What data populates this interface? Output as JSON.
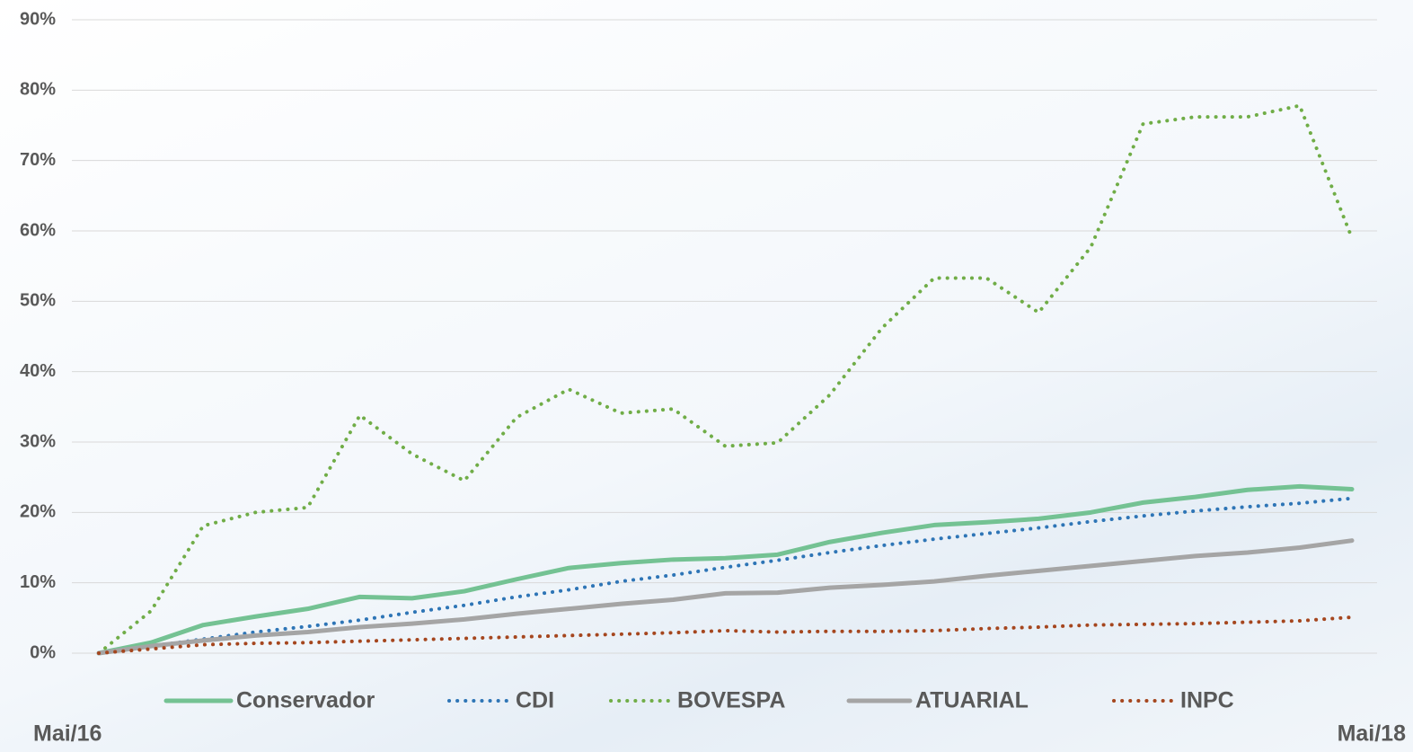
{
  "chart_data": {
    "type": "line",
    "categories": [
      "Mai/16",
      null,
      null,
      null,
      null,
      null,
      null,
      null,
      null,
      null,
      null,
      null,
      null,
      null,
      null,
      null,
      null,
      null,
      null,
      null,
      null,
      null,
      null,
      null,
      "Mai/18"
    ],
    "ylim": [
      0,
      90
    ],
    "yticks": [
      {
        "value": 0,
        "label": "0%"
      },
      {
        "value": 10,
        "label": "10%"
      },
      {
        "value": 20,
        "label": "20%"
      },
      {
        "value": 30,
        "label": "30%"
      },
      {
        "value": 40,
        "label": "40%"
      },
      {
        "value": 50,
        "label": "50%"
      },
      {
        "value": 60,
        "label": "60%"
      },
      {
        "value": 70,
        "label": "70%"
      },
      {
        "value": 80,
        "label": "80%"
      },
      {
        "value": 90,
        "label": "90%"
      }
    ],
    "grid": true,
    "legend": "bottom",
    "series": [
      {
        "name": "Conservador",
        "color": "#74c293",
        "style": "solid",
        "values": [
          0,
          1.5,
          4,
          5.2,
          6.3,
          8,
          7.8,
          8.8,
          10.5,
          12.1,
          12.8,
          13.3,
          13.5,
          14,
          15.8,
          17.1,
          18.2,
          18.6,
          19.1,
          20,
          21.4,
          22.2,
          23.2,
          23.7,
          23.3
        ]
      },
      {
        "name": "CDI",
        "color": "#2e75b6",
        "style": "dotted",
        "values": [
          0,
          1,
          2,
          3,
          3.8,
          4.7,
          5.8,
          6.8,
          8,
          9,
          10.2,
          11.1,
          12.2,
          13.2,
          14.3,
          15.3,
          16.2,
          17,
          17.8,
          18.7,
          19.5,
          20.2,
          20.8,
          21.3,
          22
        ]
      },
      {
        "name": "BOVESPA",
        "color": "#70ad47",
        "style": "dotted",
        "values": [
          0,
          6,
          18.1,
          20,
          20.7,
          33.8,
          28.3,
          24.5,
          33.5,
          37.5,
          34.1,
          34.7,
          29.4,
          29.9,
          36.7,
          46.2,
          53.3,
          53.3,
          48.4,
          57.7,
          75.2,
          76.2,
          76.2,
          77.8,
          59
        ]
      },
      {
        "name": "ATUARIAL",
        "color": "#a5a5a5",
        "style": "solid",
        "values": [
          0,
          1,
          1.8,
          2.5,
          3,
          3.7,
          4.2,
          4.8,
          5.6,
          6.3,
          7,
          7.6,
          8.5,
          8.6,
          9.3,
          9.7,
          10.2,
          11,
          11.7,
          12.4,
          13.1,
          13.8,
          14.3,
          15,
          16
        ]
      },
      {
        "name": "INPC",
        "color": "#a5461e",
        "style": "dotted",
        "values": [
          0,
          0.6,
          1.2,
          1.4,
          1.5,
          1.7,
          1.9,
          2.1,
          2.3,
          2.5,
          2.7,
          2.9,
          3.2,
          3,
          3.1,
          3.1,
          3.2,
          3.5,
          3.7,
          4,
          4.1,
          4.2,
          4.4,
          4.6,
          5.1
        ]
      }
    ]
  }
}
